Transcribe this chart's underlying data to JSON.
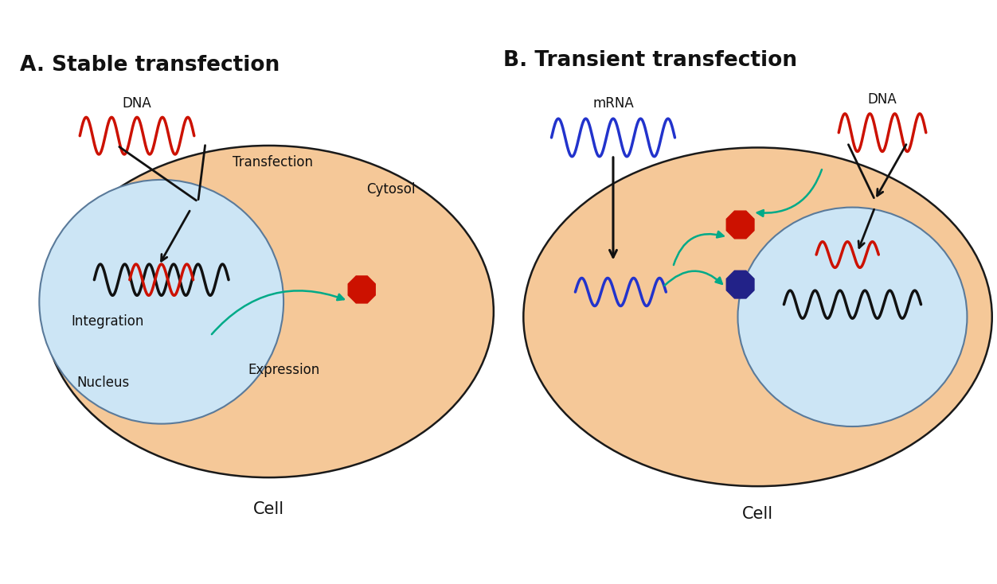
{
  "bg_color": "#ffffff",
  "cell_fill": "#f5c898",
  "cell_edge": "#1a1a1a",
  "nucleus_fill": "#cce5f5",
  "nucleus_edge": "#5a7a9a",
  "red_wave_color": "#cc1100",
  "black_wave_color": "#111111",
  "blue_wave_color": "#2233cc",
  "green_arrow_color": "#00aa88",
  "black_arrow_color": "#111111",
  "protein_red_color": "#cc1100",
  "protein_blue_color": "#222288",
  "title_A": "A. Stable transfection",
  "title_B": "B. Transient transfection",
  "label_cell": "Cell",
  "label_nucleus": "Nucleus",
  "label_cytosol": "Cytosol",
  "label_integration": "Integration",
  "label_expression": "Expression",
  "label_transfection": "Transfection",
  "label_DNA": "DNA",
  "label_mRNA": "mRNA",
  "fontsize_title": 19,
  "fontsize_label": 13,
  "fontsize_small": 12
}
